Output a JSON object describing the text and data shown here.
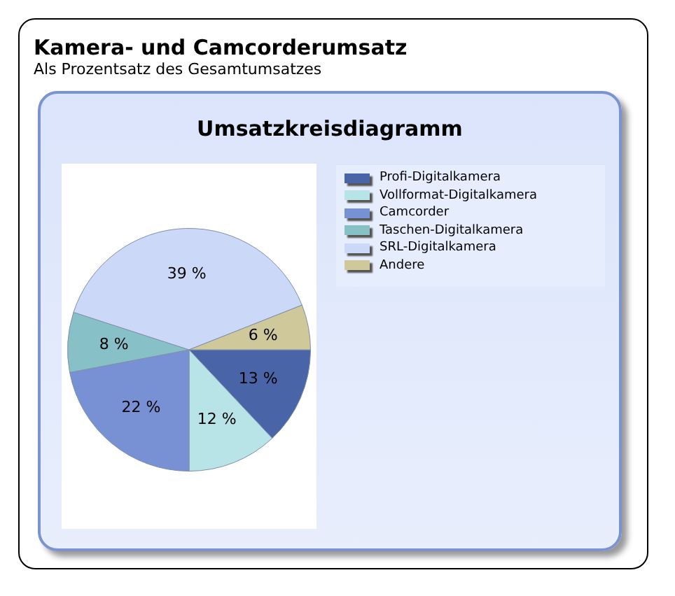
{
  "chart_data": {
    "type": "pie",
    "title": "Kamera- und Camcorderumsatz",
    "subtitle": "Als Prozentsatz des Gesamtumsatzes",
    "annotations": [
      "Umsatzkreisdiagramm"
    ],
    "categories": [
      "Profi-Digitalkamera",
      "Vollformat-Digitalkamera",
      "Camcorder",
      "Taschen-Digitalkamera",
      "SRL-Digitalkamera",
      "Andere"
    ],
    "values": [
      13,
      12,
      22,
      8,
      39,
      6
    ],
    "value_labels": [
      "13 %",
      "12 %",
      "22 %",
      "8 %",
      "39 %",
      "6 %"
    ],
    "colors": [
      "#4a64a8",
      "#b8e4e8",
      "#7890d4",
      "#88c0c8",
      "#ccd8f8",
      "#cec89a"
    ],
    "legend": "top right"
  }
}
